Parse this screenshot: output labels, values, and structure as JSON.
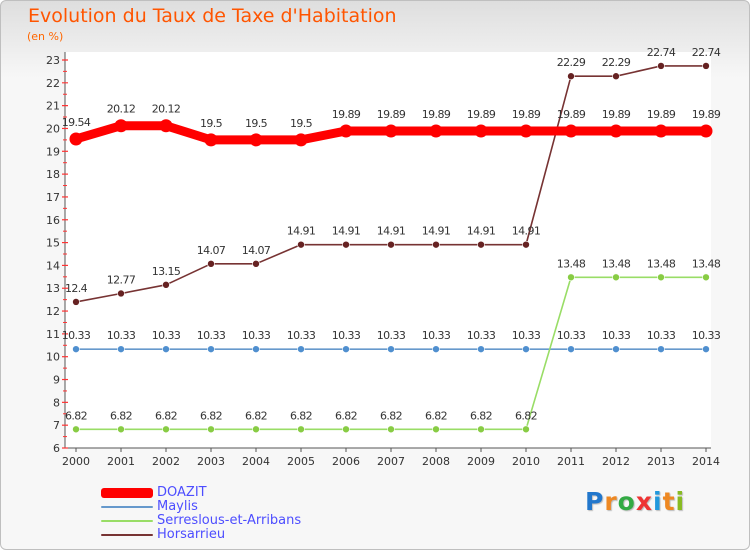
{
  "chart_data": {
    "type": "line",
    "title": "Evolution du Taux de Taxe d'Habitation",
    "subtitle": "(en %)",
    "xlabel": "",
    "ylabel": "",
    "x": [
      "2000",
      "2001",
      "2002",
      "2003",
      "2004",
      "2005",
      "2006",
      "2007",
      "2008",
      "2009",
      "2010",
      "2011",
      "2012",
      "2013",
      "2014"
    ],
    "ylim": [
      6,
      23
    ],
    "yticks": [
      6,
      7,
      8,
      9,
      10,
      11,
      12,
      13,
      14,
      15,
      16,
      17,
      18,
      19,
      20,
      21,
      22,
      23
    ],
    "grid": false,
    "legend_position": "bottom-left",
    "series": [
      {
        "name": "DOAZIT",
        "color": "#ff0000",
        "values": [
          19.54,
          20.12,
          20.12,
          19.5,
          19.5,
          19.5,
          19.89,
          19.89,
          19.89,
          19.89,
          19.89,
          19.89,
          19.89,
          19.89,
          19.89
        ],
        "labels": [
          "19.54",
          "20.12",
          "20.12",
          "19.5",
          "19.5",
          "19.5",
          "19.89",
          "19.89",
          "19.89",
          "19.89",
          "19.89",
          "19.89",
          "19.89",
          "19.89",
          "19.89"
        ]
      },
      {
        "name": "Maylis",
        "color": "#6699cc",
        "values": [
          10.33,
          10.33,
          10.33,
          10.33,
          10.33,
          10.33,
          10.33,
          10.33,
          10.33,
          10.33,
          10.33,
          10.33,
          10.33,
          10.33,
          10.33
        ],
        "labels": [
          "10.33",
          "10.33",
          "10.33",
          "10.33",
          "10.33",
          "10.33",
          "10.33",
          "10.33",
          "10.33",
          "10.33",
          "10.33",
          "10.33",
          "10.33",
          "10.33",
          "10.33"
        ]
      },
      {
        "name": "Serreslous-et-Arribans",
        "color": "#99dd66",
        "values": [
          6.82,
          6.82,
          6.82,
          6.82,
          6.82,
          6.82,
          6.82,
          6.82,
          6.82,
          6.82,
          6.82,
          13.48,
          13.48,
          13.48,
          13.48
        ],
        "labels": [
          "6.82",
          "6.82",
          "6.82",
          "6.82",
          "6.82",
          "6.82",
          "6.82",
          "6.82",
          "6.82",
          "6.82",
          "6.82",
          "13.48",
          "13.48",
          "13.48",
          "13.48"
        ]
      },
      {
        "name": "Horsarrieu",
        "color": "#773333",
        "values": [
          12.4,
          12.77,
          13.15,
          14.07,
          14.07,
          14.91,
          14.91,
          14.91,
          14.91,
          14.91,
          14.91,
          22.29,
          22.29,
          22.74,
          22.74
        ],
        "labels": [
          "12.4",
          "12.77",
          "13.15",
          "14.07",
          "14.07",
          "14.91",
          "14.91",
          "14.91",
          "14.91",
          "14.91",
          "14.91",
          "22.29",
          "22.29",
          "22.74",
          "22.74"
        ]
      }
    ]
  },
  "brand": {
    "letters": [
      "P",
      "r",
      "o",
      "x",
      "i",
      "t",
      "i"
    ],
    "colors": [
      "#2277cc",
      "#ee8822",
      "#33aa44",
      "#ee3333",
      "#2299dd",
      "#ee8822",
      "#88bb22"
    ]
  }
}
